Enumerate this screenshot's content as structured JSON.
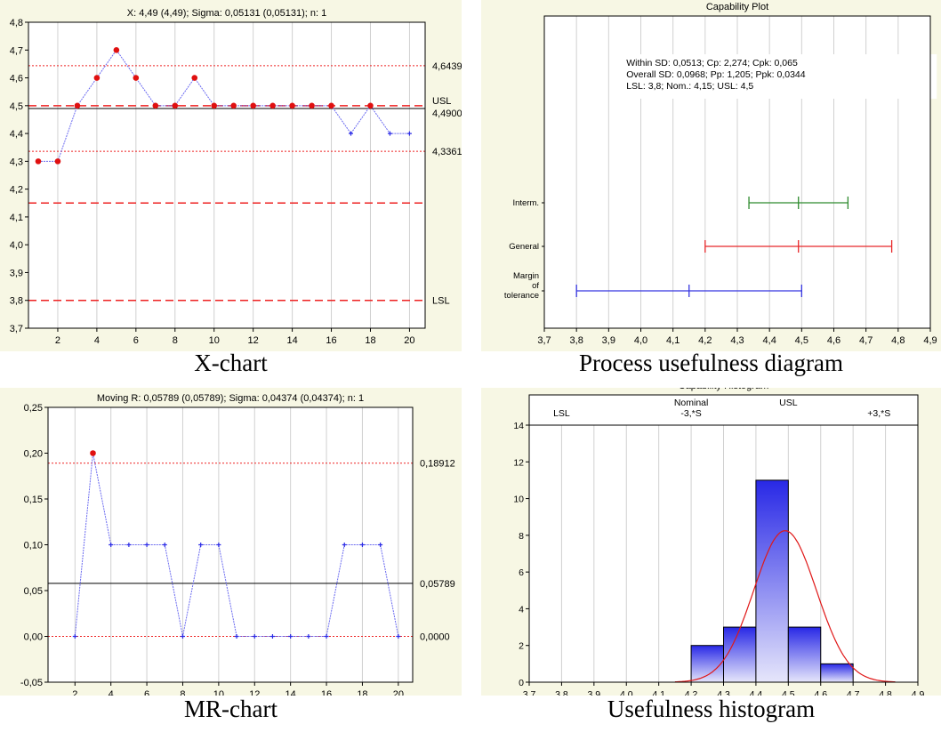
{
  "captions": {
    "xchart": "X-chart",
    "capplot": "Process usefulness diagram",
    "mrchart": "MR-chart",
    "hist": "Usefulness histogram"
  },
  "chart_data": [
    {
      "id": "xchart",
      "type": "line",
      "title": "X: 4,49 (4,49); Sigma: 0,05131 (0,05131); n: 1",
      "x": [
        1,
        2,
        3,
        4,
        5,
        6,
        7,
        8,
        9,
        10,
        11,
        12,
        13,
        14,
        15,
        16,
        17,
        18,
        19,
        20
      ],
      "values": [
        4.3,
        4.3,
        4.5,
        4.6,
        4.7,
        4.6,
        4.5,
        4.5,
        4.6,
        4.5,
        4.5,
        4.5,
        4.5,
        4.5,
        4.5,
        4.5,
        4.4,
        4.5,
        4.4,
        4.4
      ],
      "out_of_control": [
        true,
        true,
        true,
        true,
        true,
        true,
        true,
        true,
        true,
        true,
        true,
        true,
        true,
        true,
        true,
        true,
        false,
        true,
        false,
        false
      ],
      "xticks": [
        "2",
        "4",
        "6",
        "8",
        "10",
        "12",
        "14",
        "16",
        "18",
        "20"
      ],
      "xtick_values": [
        2,
        4,
        6,
        8,
        10,
        12,
        14,
        16,
        18,
        20
      ],
      "yticks": [
        "3,7",
        "3,8",
        "3,9",
        "4,0",
        "4,1",
        "4,2",
        "4,3",
        "4,4",
        "4,5",
        "4,6",
        "4,7",
        "4,8"
      ],
      "ytick_values": [
        3.7,
        3.8,
        3.9,
        4.0,
        4.1,
        4.2,
        4.3,
        4.4,
        4.5,
        4.6,
        4.7,
        4.8
      ],
      "xlim": [
        0.5,
        20.8
      ],
      "ylim": [
        3.7,
        4.8
      ],
      "lines": [
        {
          "value": 4.6439,
          "label": "4,6439",
          "style": "dotted"
        },
        {
          "value": 4.5,
          "label": "USL",
          "style": "dashed"
        },
        {
          "value": 4.49,
          "label": "4,4900",
          "style": "center"
        },
        {
          "value": 4.3361,
          "label": "4,3361",
          "style": "dotted"
        },
        {
          "value": 4.15,
          "label": "",
          "style": "dashed"
        },
        {
          "value": 3.8,
          "label": "LSL",
          "style": "dashed"
        }
      ]
    },
    {
      "id": "capplot",
      "type": "interval",
      "title": "Capability Plot",
      "annotation": [
        "Within SD: 0,0513; Cp: 2,274; Cpk: 0,065",
        "Overall SD: 0,0968; Pp: 1,205; Ppk: 0,0344",
        "LSL: 3,8; Nom.: 4,15; USL: 4,5"
      ],
      "xticks": [
        "3,7",
        "3,8",
        "3,9",
        "4,0",
        "4,1",
        "4,2",
        "4,3",
        "4,4",
        "4,5",
        "4,6",
        "4,7",
        "4,8",
        "4,9"
      ],
      "xtick_values": [
        3.7,
        3.8,
        3.9,
        4.0,
        4.1,
        4.2,
        4.3,
        4.4,
        4.5,
        4.6,
        4.7,
        4.8,
        4.9
      ],
      "xlim": [
        3.7,
        4.9
      ],
      "intervals": [
        {
          "label": [
            "Interm."
          ],
          "low": 4.3361,
          "mid": 4.49,
          "high": 4.6439,
          "color": "#2e8b2e"
        },
        {
          "label": [
            "General"
          ],
          "low": 4.2,
          "mid": 4.49,
          "high": 4.78,
          "color": "#e8282a"
        },
        {
          "label": [
            "Margin",
            "of",
            "tolerance"
          ],
          "low": 3.8,
          "mid": 4.15,
          "high": 4.5,
          "color": "#3535e0"
        }
      ]
    },
    {
      "id": "mrchart",
      "type": "line",
      "title": "Moving R: 0,05789 (0,05789); Sigma: 0,04374 (0,04374); n: 1",
      "x": [
        2,
        3,
        4,
        5,
        6,
        7,
        8,
        9,
        10,
        11,
        12,
        13,
        14,
        15,
        16,
        17,
        18,
        19,
        20
      ],
      "values": [
        0.0,
        0.2,
        0.1,
        0.1,
        0.1,
        0.1,
        0.0,
        0.1,
        0.1,
        0.0,
        0.0,
        0.0,
        0.0,
        0.0,
        0.0,
        0.1,
        0.1,
        0.1,
        0.0
      ],
      "out_of_control": [
        false,
        true,
        false,
        false,
        false,
        false,
        false,
        false,
        false,
        false,
        false,
        false,
        false,
        false,
        false,
        false,
        false,
        false,
        false
      ],
      "xticks": [
        "2",
        "4",
        "6",
        "8",
        "10",
        "12",
        "14",
        "16",
        "18",
        "20"
      ],
      "xtick_values": [
        2,
        4,
        6,
        8,
        10,
        12,
        14,
        16,
        18,
        20
      ],
      "yticks": [
        "-0,05",
        "0,00",
        "0,05",
        "0,10",
        "0,15",
        "0,20",
        "0,25"
      ],
      "ytick_values": [
        -0.05,
        0.0,
        0.05,
        0.1,
        0.15,
        0.2,
        0.25
      ],
      "xlim": [
        0.5,
        20.8
      ],
      "ylim": [
        -0.05,
        0.25
      ],
      "lines": [
        {
          "value": 0.18912,
          "label": "0,18912",
          "style": "dotted"
        },
        {
          "value": 0.05789,
          "label": "0,05789",
          "style": "center"
        },
        {
          "value": 0.0,
          "label": "0,0000",
          "style": "dotted"
        }
      ]
    },
    {
      "id": "hist",
      "type": "bar",
      "title": "Capability Histogram",
      "bins": [
        [
          4.2,
          4.3
        ],
        [
          4.3,
          4.4
        ],
        [
          4.4,
          4.5
        ],
        [
          4.5,
          4.6
        ],
        [
          4.6,
          4.7
        ]
      ],
      "values": [
        2,
        3,
        11,
        3,
        1
      ],
      "normal_curve": {
        "mean": 4.49,
        "sd": 0.0968,
        "peak": 8.25
      },
      "xticks": [
        "3,7",
        "3,8",
        "3,9",
        "4,0",
        "4,1",
        "4,2",
        "4,3",
        "4,4",
        "4,5",
        "4,6",
        "4,7",
        "4,8",
        "4,9"
      ],
      "xtick_values": [
        3.7,
        3.8,
        3.9,
        4.0,
        4.1,
        4.2,
        4.3,
        4.4,
        4.5,
        4.6,
        4.7,
        4.8,
        4.9
      ],
      "yticks": [
        "0",
        "2",
        "4",
        "6",
        "8",
        "10",
        "12",
        "14"
      ],
      "ytick_values": [
        0,
        2,
        4,
        6,
        8,
        10,
        12,
        14
      ],
      "xlim": [
        3.7,
        4.9
      ],
      "ylim": [
        0,
        14
      ],
      "top_labels": [
        {
          "text": "LSL",
          "x": 3.8,
          "row": 2
        },
        {
          "text": "Nominal",
          "x": 4.2,
          "row": 1
        },
        {
          "text": "-3,*S",
          "x": 4.2,
          "row": 2
        },
        {
          "text": "USL",
          "x": 4.5,
          "row": 1
        },
        {
          "text": "+3,*S",
          "x": 4.78,
          "row": 2
        }
      ]
    }
  ]
}
